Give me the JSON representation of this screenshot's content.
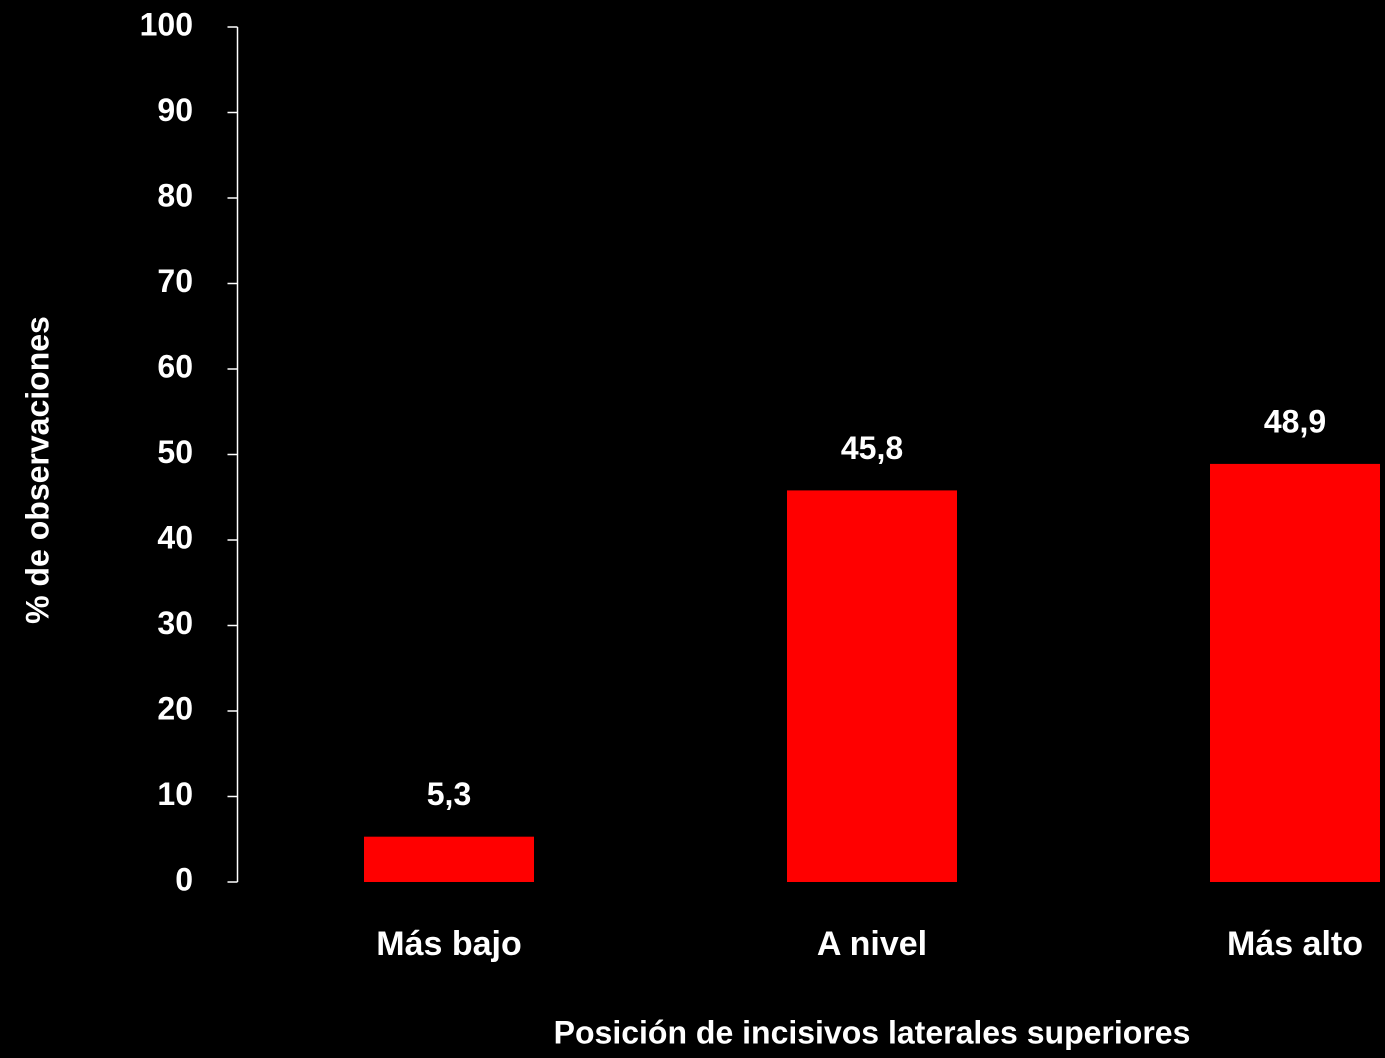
{
  "chart_data": {
    "type": "bar",
    "x_label": "Posición de incisivos laterales superiores",
    "y_label": "% de observaciones",
    "categories": [
      "Más bajo",
      "A nivel",
      "Más alto"
    ],
    "values": [
      5.3,
      45.8,
      48.9
    ],
    "value_labels": [
      "5,3",
      "45,8",
      "48,9"
    ],
    "color": "#ff0000",
    "ylim": [
      0,
      100
    ],
    "yticks": [
      0,
      10,
      20,
      30,
      40,
      50,
      60,
      70,
      80,
      90,
      100
    ]
  }
}
